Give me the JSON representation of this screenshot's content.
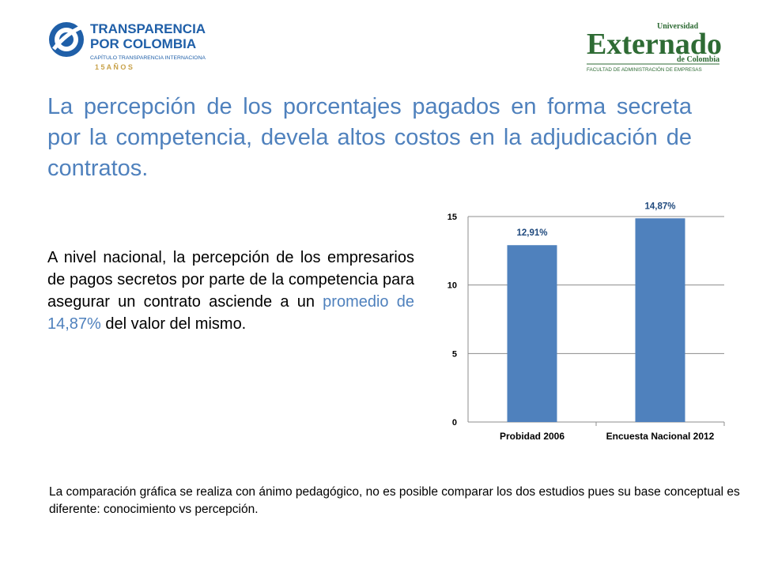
{
  "logos": {
    "tpc": {
      "line1": "TRANSPARENCIA",
      "line2": "POR COLOMBIA",
      "line3": "CAPÍTULO TRANSPARENCIA INTERNACIONAL",
      "line4": "1 5   A Ñ O S"
    },
    "externado": {
      "small": "Universidad",
      "big": "Externado",
      "sub": "de Colombia",
      "faculty": "FACULTAD DE ADMINISTRACIÓN DE EMPRESAS"
    }
  },
  "title": "La percepción de los porcentajes pagados en forma secreta por la competencia, devela altos costos en la adjudicación de contratos.",
  "body": {
    "text_before": "A nivel nacional, la percepción de los empresarios de pagos secretos por parte de la competencia para asegurar un contrato asciende a un ",
    "highlight": "promedio de 14,87%",
    "text_after": " del valor del mismo."
  },
  "footnote": "La comparación gráfica se realiza con ánimo pedagógico, no es posible comparar los dos estudios pues su base conceptual es diferente: conocimiento vs percepción.",
  "colors": {
    "accent": "#4f81bd",
    "bar": "#4f81bd"
  },
  "chart_data": {
    "type": "bar",
    "categories": [
      "Probidad 2006",
      "Encuesta Nacional 2012"
    ],
    "values": [
      12.91,
      14.87
    ],
    "data_labels": [
      "12,91%",
      "14,87%"
    ],
    "ylim": [
      0,
      15
    ],
    "yticks": [
      0,
      5,
      10,
      15
    ],
    "grid": true,
    "legend": "none"
  }
}
